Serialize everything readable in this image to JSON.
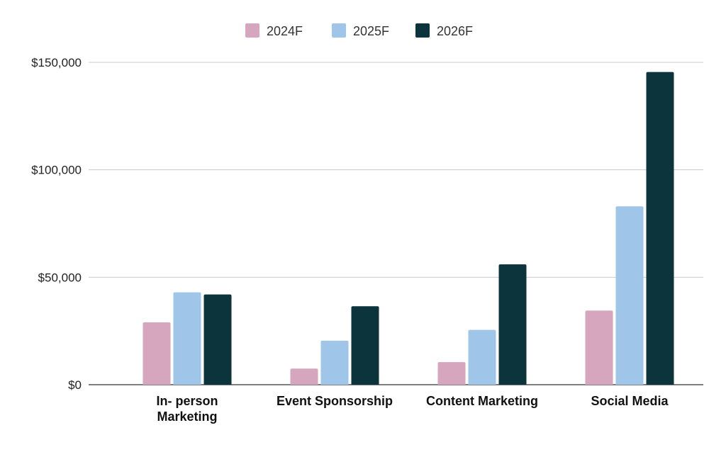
{
  "chart_data": {
    "type": "bar",
    "categories": [
      "In- person Marketing",
      "Event Sponsorship",
      "Content Marketing",
      "Social Media"
    ],
    "category_lines": [
      [
        "In- person",
        "Marketing"
      ],
      [
        "Event Sponsorship"
      ],
      [
        "Content Marketing"
      ],
      [
        "Social Media"
      ]
    ],
    "series": [
      {
        "name": "2024F",
        "color": "#d5a6bd",
        "values": [
          29000,
          7500,
          10500,
          34500
        ]
      },
      {
        "name": "2025F",
        "color": "#9fc5e8",
        "values": [
          43000,
          20500,
          25500,
          83000
        ]
      },
      {
        "name": "2026F",
        "color": "#0c343d",
        "values": [
          42000,
          36500,
          56000,
          145500
        ]
      }
    ],
    "ylim": [
      0,
      150000
    ],
    "yticks": [
      0,
      50000,
      100000,
      150000
    ],
    "ytick_labels": [
      "$0",
      "$50,000",
      "$100,000",
      "$150,000"
    ],
    "title": "",
    "xlabel": "",
    "ylabel": "",
    "grid": true,
    "legend_position": "top-center"
  }
}
